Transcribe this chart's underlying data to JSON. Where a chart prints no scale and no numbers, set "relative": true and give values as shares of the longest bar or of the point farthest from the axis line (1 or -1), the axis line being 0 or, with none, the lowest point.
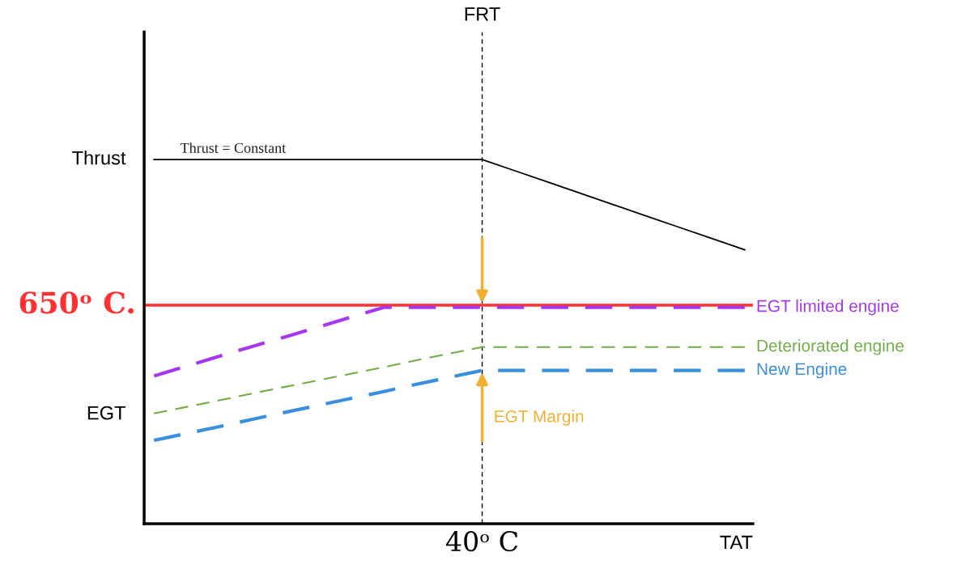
{
  "chart_data": {
    "type": "line",
    "relative": true,
    "xlabel": "TAT",
    "legend": false,
    "line_style": "dashed",
    "categories": [
      null,
      null,
      null,
      null,
      null,
      null,
      null,
      null,
      null,
      null,
      null,
      null,
      null,
      null,
      null,
      null,
      null,
      null,
      null
    ],
    "series": [
      {
        "name": "Thrust = Constant",
        "color": "#000000",
        "line_style": "solid",
        "values": [
          1.0,
          1.0,
          1.0,
          1.0,
          1.0,
          1.0,
          1.0,
          1.0,
          1.0,
          1.0,
          1.0,
          0.969,
          0.938,
          0.907,
          0.876,
          0.845,
          0.814,
          0.783,
          0.752
        ]
      },
      {
        "name": "EGT limited engine",
        "color": "#a636f0",
        "values": [
          0.406,
          0.433,
          0.46,
          0.487,
          0.513,
          0.54,
          0.567,
          0.594,
          0.594,
          0.594,
          0.594,
          0.594,
          0.594,
          0.594,
          0.594,
          0.594,
          0.594,
          0.594,
          0.594
        ]
      },
      {
        "name": "Deteriorated engine",
        "color": "#70ad47",
        "values": [
          0.303,
          0.321,
          0.339,
          0.358,
          0.376,
          0.394,
          0.412,
          0.43,
          0.449,
          0.467,
          0.485,
          0.485,
          0.485,
          0.485,
          0.485,
          0.485,
          0.485,
          0.485,
          0.485
        ]
      },
      {
        "name": "New Engine",
        "color": "#3a8fdc",
        "values": [
          0.229,
          0.248,
          0.267,
          0.287,
          0.306,
          0.325,
          0.344,
          0.363,
          0.383,
          0.402,
          0.421,
          0.421,
          0.421,
          0.421,
          0.421,
          0.421,
          0.421,
          0.421,
          0.421
        ]
      }
    ],
    "ref_lines": [
      {
        "axis": "y",
        "value": 0.6,
        "label": "650ᵒ C.",
        "color": "#ff3030",
        "line_style": "solid"
      }
    ],
    "annotations": [
      "Thrust",
      "EGT",
      "EGT Margin",
      "40ᵒ C",
      "FRT"
    ]
  }
}
